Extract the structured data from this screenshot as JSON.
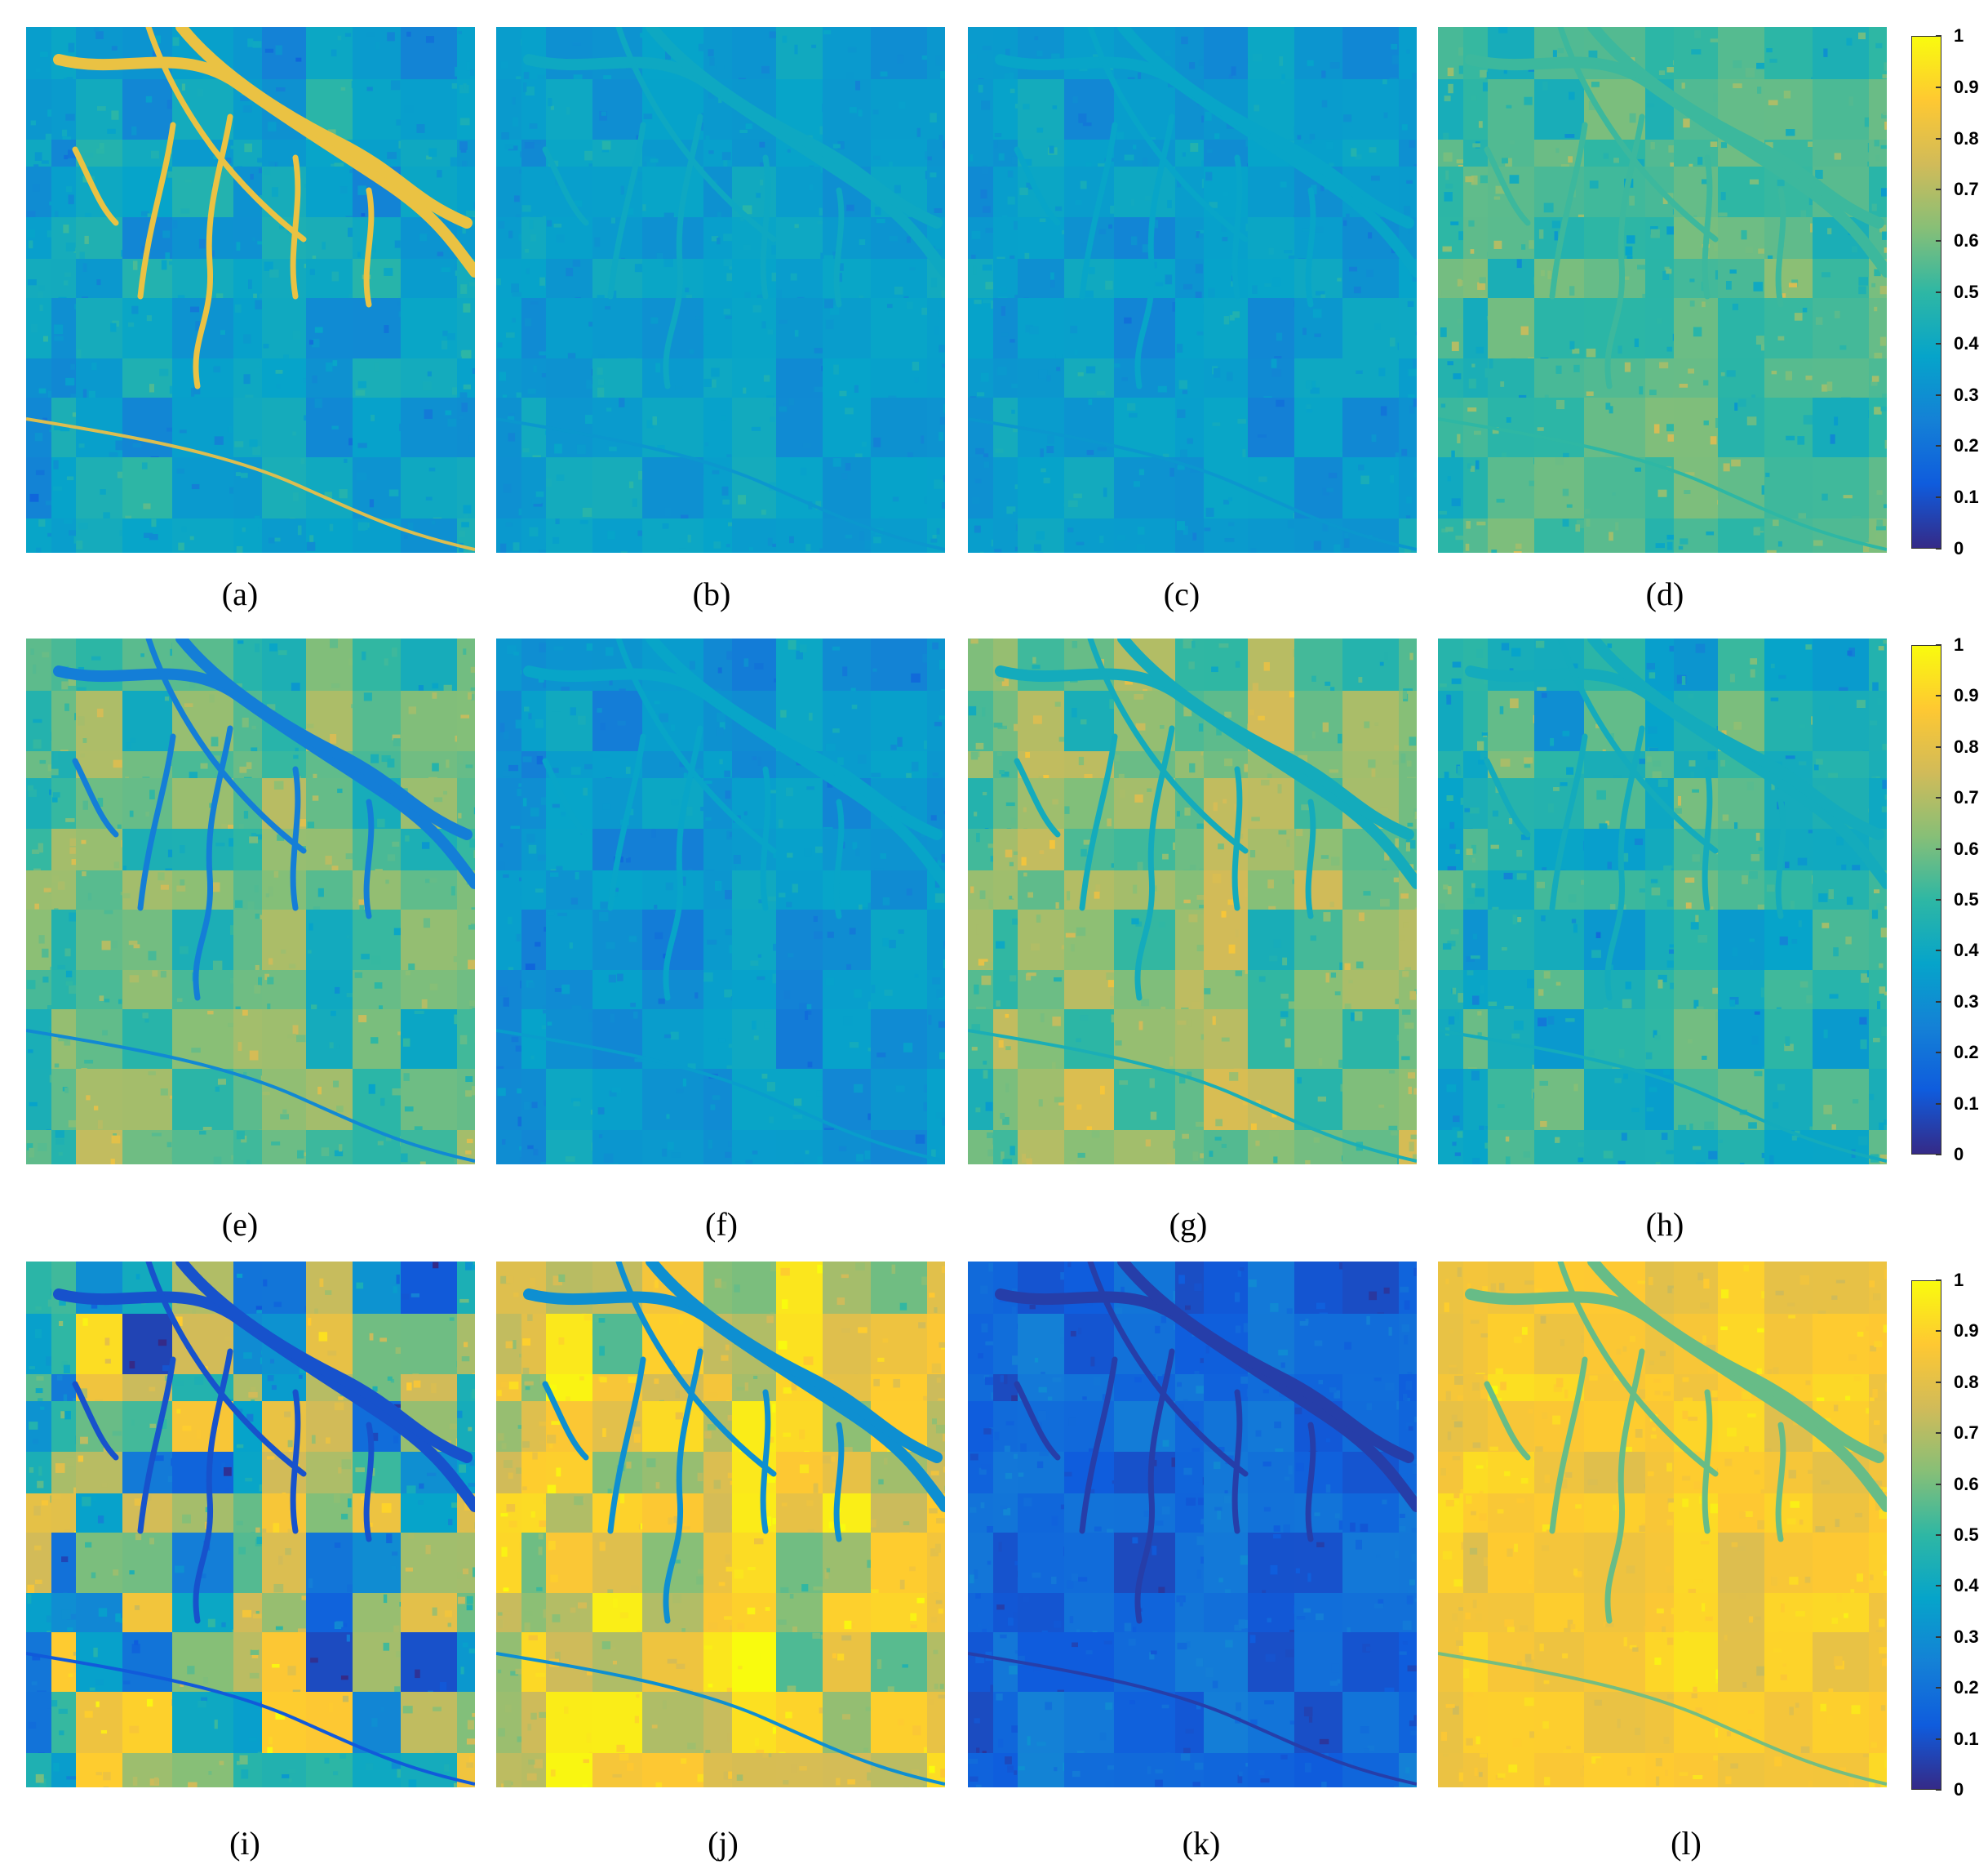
{
  "figure": {
    "panels": [
      {
        "id": "a",
        "caption": "(a)",
        "base": 0.36,
        "block_amp": 0.1,
        "river": 0.82,
        "road": 0.78,
        "noise": 0.08
      },
      {
        "id": "b",
        "caption": "(b)",
        "base": 0.35,
        "block_amp": 0.06,
        "river": 0.4,
        "road": 0.33,
        "noise": 0.06
      },
      {
        "id": "c",
        "caption": "(c)",
        "base": 0.34,
        "block_amp": 0.07,
        "river": 0.38,
        "road": 0.33,
        "noise": 0.06
      },
      {
        "id": "d",
        "caption": "(d)",
        "base": 0.52,
        "block_amp": 0.08,
        "river": 0.52,
        "road": 0.5,
        "noise": 0.12
      },
      {
        "id": "e",
        "caption": "(e)",
        "base": 0.56,
        "block_amp": 0.14,
        "river": 0.24,
        "road": 0.28,
        "noise": 0.1
      },
      {
        "id": "f",
        "caption": "(f)",
        "base": 0.32,
        "block_amp": 0.07,
        "river": 0.38,
        "road": 0.35,
        "noise": 0.07
      },
      {
        "id": "g",
        "caption": "(g)",
        "base": 0.6,
        "block_amp": 0.14,
        "river": 0.42,
        "road": 0.44,
        "noise": 0.1
      },
      {
        "id": "h",
        "caption": "(h)",
        "base": 0.45,
        "block_amp": 0.12,
        "river": 0.42,
        "road": 0.42,
        "noise": 0.12
      },
      {
        "id": "i",
        "caption": "(i)",
        "base": 0.5,
        "block_amp": 0.4,
        "river": 0.1,
        "road": 0.12,
        "noise": 0.12
      },
      {
        "id": "j",
        "caption": "(j)",
        "base": 0.78,
        "block_amp": 0.2,
        "river": 0.3,
        "road": 0.3,
        "noise": 0.08
      },
      {
        "id": "k",
        "caption": "(k)",
        "base": 0.16,
        "block_amp": 0.08,
        "river": 0.05,
        "road": 0.05,
        "noise": 0.05
      },
      {
        "id": "l",
        "caption": "(l)",
        "base": 0.86,
        "block_amp": 0.06,
        "river": 0.58,
        "road": 0.6,
        "noise": 0.06
      }
    ],
    "colorbar": {
      "colormap": "parula",
      "min": 0,
      "max": 1,
      "ticks": [
        "0",
        "0.1",
        "0.2",
        "0.3",
        "0.4",
        "0.5",
        "0.6",
        "0.7",
        "0.8",
        "0.9",
        "1"
      ]
    },
    "colormap_stops": [
      "#352a87",
      "#0f5cdd",
      "#1481d6",
      "#06a4ca",
      "#2eb7a4",
      "#87bf77",
      "#d1bb59",
      "#fec832",
      "#f9fb0e"
    ]
  }
}
